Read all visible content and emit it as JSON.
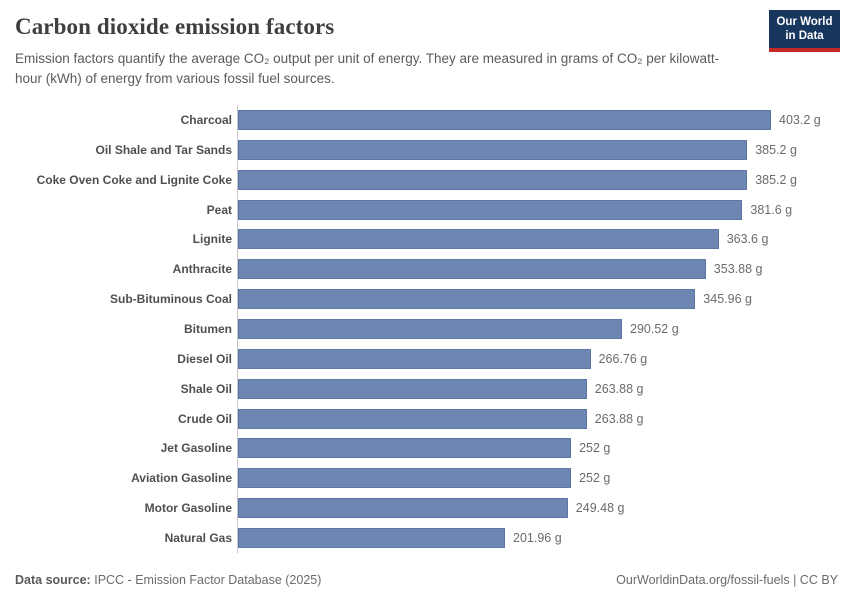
{
  "header": {
    "title": "Carbon dioxide emission factors",
    "subtitle": "Emission factors quantify the average CO₂ output per unit of energy. They are measured in grams of CO₂ per kilowatt-hour (kWh) of energy from various fossil fuel sources.",
    "logo": {
      "line1": "Our World",
      "line2": "in Data"
    }
  },
  "chart_data": {
    "type": "bar",
    "orientation": "horizontal",
    "title": "Carbon dioxide emission factors",
    "xlabel": "",
    "ylabel": "",
    "unit": "g",
    "xlim": [
      0,
      403.2
    ],
    "grid": false,
    "legend": false,
    "bar_color": "#6e87b2",
    "categories": [
      "Charcoal",
      "Oil Shale and Tar Sands",
      "Coke Oven Coke and Lignite Coke",
      "Peat",
      "Lignite",
      "Anthracite",
      "Sub-Bituminous Coal",
      "Bitumen",
      "Diesel Oil",
      "Shale Oil",
      "Crude Oil",
      "Jet Gasoline",
      "Aviation Gasoline",
      "Motor Gasoline",
      "Natural Gas"
    ],
    "values": [
      403.2,
      385.2,
      385.2,
      381.6,
      363.6,
      353.88,
      345.96,
      290.52,
      266.76,
      263.88,
      263.88,
      252,
      252,
      249.48,
      201.96
    ],
    "value_labels": [
      "403.2 g",
      "385.2 g",
      "385.2 g",
      "381.6 g",
      "363.6 g",
      "353.88 g",
      "345.96 g",
      "290.52 g",
      "266.76 g",
      "263.88 g",
      "263.88 g",
      "252 g",
      "252 g",
      "249.48 g",
      "201.96 g"
    ]
  },
  "footer": {
    "datasource_label": "Data source:",
    "datasource_value": "IPCC - Emission Factor Database (2025)",
    "right_text": "OurWorldinData.org/fossil-fuels | CC BY"
  },
  "colors": {
    "bar": "#6e87b2",
    "axis_line": "#c8c8c8",
    "logo_background": "#18375f",
    "logo_accent_red": "#c22a28",
    "title_text": "#3f3f3f",
    "subtitle_text": "#5b5b5b",
    "category_label_text": "#4f4f4f",
    "value_label_text": "#6b6b6b"
  }
}
